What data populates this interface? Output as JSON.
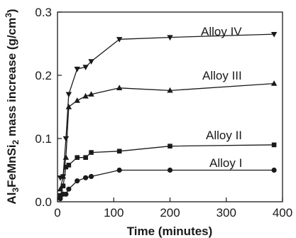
{
  "chart_data": {
    "type": "line",
    "xlabel": "Time (minutes)",
    "ylabel": {
      "parts": [
        {
          "text": "Al",
          "shift": "none"
        },
        {
          "text": "3",
          "shift": "sub"
        },
        {
          "text": "FeMnSi",
          "shift": "none"
        },
        {
          "text": "2",
          "shift": "sub"
        },
        {
          "text": " mass increase (g/cm",
          "shift": "none"
        },
        {
          "text": "3",
          "shift": "super"
        },
        {
          "text": ")",
          "shift": "none"
        }
      ]
    },
    "xlim": [
      0,
      400
    ],
    "ylim": [
      0,
      0.3
    ],
    "xticks": [
      0,
      100,
      200,
      300,
      400
    ],
    "yticks": [
      0.0,
      0.1,
      0.2,
      0.3
    ],
    "xtick_labels": [
      "0",
      "100",
      "200",
      "300",
      "400"
    ],
    "ytick_labels": [
      "0.0",
      "0.1",
      "0.2",
      "0.3"
    ],
    "grid": false,
    "legend": "none",
    "series": [
      {
        "name": "Alloy I",
        "marker": "circle",
        "color": "#1a1a1a",
        "points": [
          [
            5,
            0.005
          ],
          [
            10,
            0.012
          ],
          [
            15,
            0.012
          ],
          [
            20,
            0.02
          ],
          [
            35,
            0.033
          ],
          [
            50,
            0.038
          ],
          [
            60,
            0.04
          ],
          [
            110,
            0.05
          ],
          [
            200,
            0.05
          ],
          [
            385,
            0.05
          ]
        ]
      },
      {
        "name": "Alloy II",
        "marker": "square",
        "color": "#1a1a1a",
        "points": [
          [
            5,
            0.01
          ],
          [
            10,
            0.025
          ],
          [
            15,
            0.055
          ],
          [
            20,
            0.058
          ],
          [
            35,
            0.07
          ],
          [
            50,
            0.07
          ],
          [
            60,
            0.078
          ],
          [
            110,
            0.08
          ],
          [
            200,
            0.088
          ],
          [
            385,
            0.09
          ]
        ]
      },
      {
        "name": "Alloy III",
        "marker": "triangle-up",
        "color": "#1a1a1a",
        "points": [
          [
            5,
            0.02
          ],
          [
            10,
            0.04
          ],
          [
            15,
            0.07
          ],
          [
            20,
            0.15
          ],
          [
            35,
            0.16
          ],
          [
            50,
            0.167
          ],
          [
            60,
            0.17
          ],
          [
            110,
            0.18
          ],
          [
            200,
            0.176
          ],
          [
            385,
            0.187
          ]
        ]
      },
      {
        "name": "Alloy IV",
        "marker": "triangle-down",
        "color": "#1a1a1a",
        "points": [
          [
            5,
            0.038
          ],
          [
            10,
            0.04
          ],
          [
            15,
            0.1
          ],
          [
            20,
            0.17
          ],
          [
            35,
            0.21
          ],
          [
            50,
            0.213
          ],
          [
            60,
            0.222
          ],
          [
            110,
            0.257
          ],
          [
            200,
            0.26
          ],
          [
            385,
            0.265
          ]
        ]
      }
    ]
  }
}
